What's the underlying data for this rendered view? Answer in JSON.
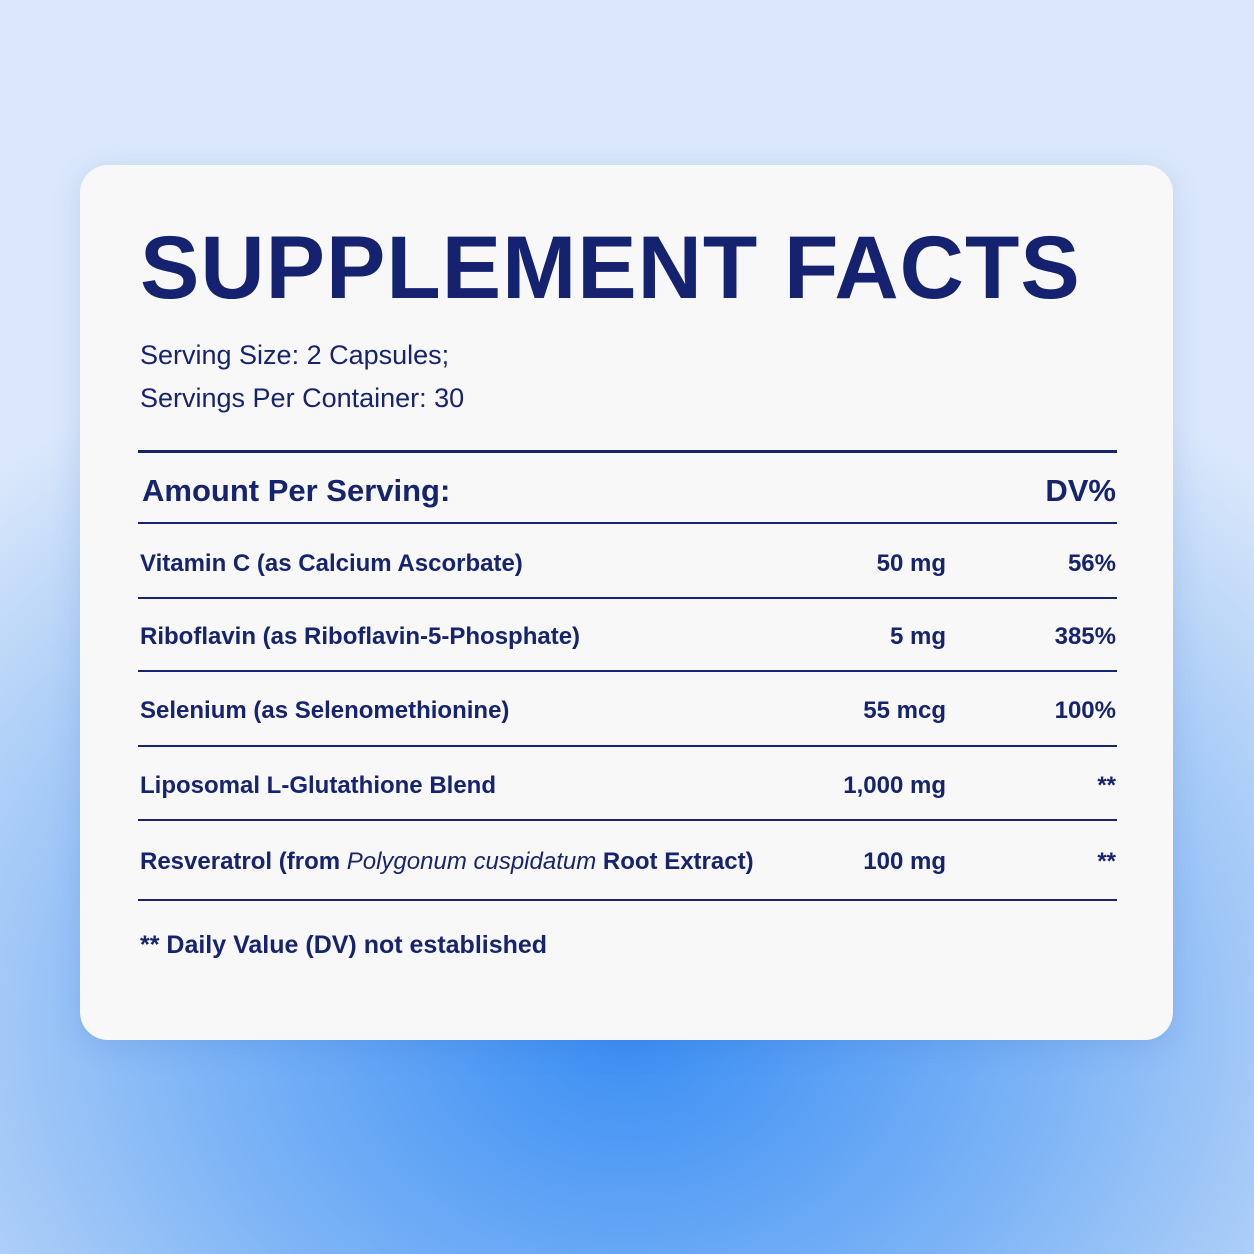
{
  "label": {
    "title": "SUPPLEMENT FACTS",
    "serving_size": "Serving Size: 2 Capsules;",
    "servings_per_container": "Servings Per Container: 30",
    "header": {
      "amount": "Amount Per Serving:",
      "dv": "DV%"
    },
    "rows": [
      {
        "name": "Vitamin C (as Calcium Ascorbate)",
        "amount": "50 mg",
        "dv": "56%"
      },
      {
        "name": "Riboflavin (as Riboflavin-5-Phosphate)",
        "amount": "5 mg",
        "dv": "385%"
      },
      {
        "name": "Selenium (as Selenomethionine)",
        "amount": "55 mcg",
        "dv": "100%"
      },
      {
        "name": "Liposomal L-Glutathione Blend",
        "amount": "1,000 mg",
        "dv": "**"
      },
      {
        "name_before": "Resveratrol (from",
        "name_italic": "Polygonum cuspidatum",
        "name_after": "Root Extract)",
        "amount": "100 mg",
        "dv": "**"
      }
    ],
    "footnote": "** Daily Value (DV) not established"
  }
}
